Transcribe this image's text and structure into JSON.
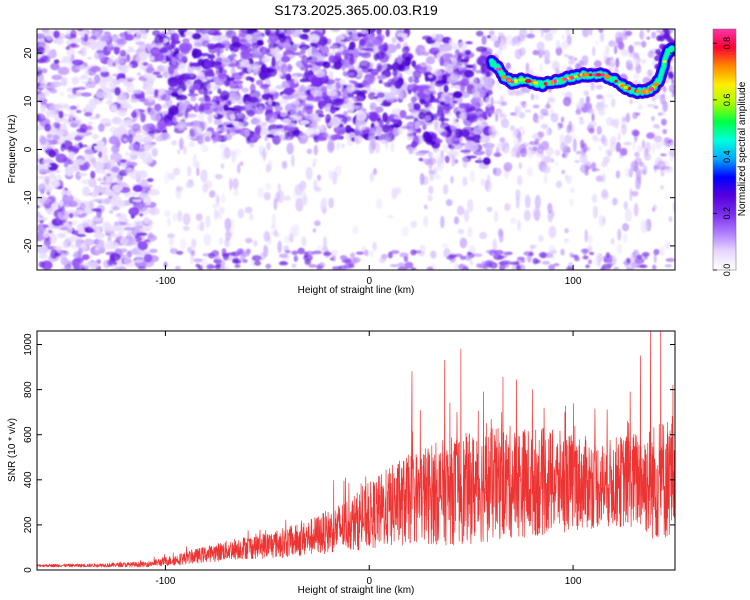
{
  "title": "S173.2025.365.00.03.R19",
  "colors": {
    "snr_line": "#ee3333",
    "spectrum_noise": "#7b2ff0",
    "colormap": [
      "#ffffff",
      "#e8d8ff",
      "#b07cff",
      "#7a2ff0",
      "#5500dd",
      "#0000ff",
      "#00aaff",
      "#00ffdd",
      "#00ff44",
      "#aaff00",
      "#ffee00",
      "#ff8800",
      "#ff0033",
      "#ff33aa"
    ]
  },
  "chart_data": [
    {
      "type": "heatmap",
      "title": "S173.2025.365.00.03.R19",
      "xlabel": "Height of straight line (km)",
      "ylabel": "Frequency (Hz)",
      "xlim": [
        -163,
        150
      ],
      "ylim": [
        -25,
        25
      ],
      "xticks": [
        -100,
        0,
        100
      ],
      "yticks": [
        -20,
        -10,
        0,
        10,
        20
      ],
      "grid": false,
      "colorbar": {
        "label": "Normalized spectral amplitude",
        "range": [
          0,
          0.85
        ],
        "ticks": [
          0.0,
          0.2,
          0.4,
          0.6,
          0.8
        ]
      },
      "tone_track": {
        "x": [
          60,
          63,
          66,
          70,
          75,
          80,
          85,
          90,
          95,
          100,
          105,
          110,
          115,
          120,
          125,
          128,
          132,
          136,
          140,
          143,
          146,
          149
        ],
        "y": [
          18,
          17,
          15,
          14,
          14.5,
          14,
          13.5,
          14,
          14.5,
          15,
          15.5,
          15.5,
          15.5,
          14.5,
          13,
          12.5,
          12,
          12,
          13,
          15,
          20,
          21
        ],
        "peak_amplitude": 0.85
      }
    },
    {
      "type": "line",
      "xlabel": "Height of straight line (km)",
      "ylabel": "SNR (10 * v/v)",
      "xlim": [
        -163,
        150
      ],
      "ylim": [
        0,
        1060
      ],
      "xticks": [
        -100,
        0,
        100
      ],
      "yticks": [
        0,
        200,
        400,
        600,
        800,
        1000
      ],
      "grid": false,
      "envelope": {
        "x": [
          -163,
          -140,
          -110,
          -95,
          -80,
          -65,
          -50,
          -35,
          -20,
          -5,
          10,
          25,
          40,
          55,
          70,
          85,
          100,
          115,
          130,
          140,
          150
        ],
        "mean": [
          20,
          20,
          25,
          45,
          70,
          95,
          110,
          130,
          170,
          220,
          280,
          330,
          350,
          370,
          390,
          390,
          390,
          380,
          400,
          390,
          420
        ],
        "spread": [
          5,
          6,
          10,
          20,
          30,
          40,
          50,
          60,
          80,
          110,
          150,
          180,
          200,
          210,
          210,
          200,
          180,
          160,
          180,
          220,
          240
        ]
      },
      "peaks": [
        {
          "x": 21,
          "y": 880
        },
        {
          "x": 37,
          "y": 930
        },
        {
          "x": 45,
          "y": 980
        },
        {
          "x": 56,
          "y": 790
        },
        {
          "x": 65,
          "y": 700
        },
        {
          "x": 80,
          "y": 800
        },
        {
          "x": 96,
          "y": 700
        },
        {
          "x": 128,
          "y": 790
        },
        {
          "x": 133,
          "y": 950
        },
        {
          "x": 138,
          "y": 1060
        },
        {
          "x": 143,
          "y": 1070
        },
        {
          "x": 149,
          "y": 820
        }
      ]
    }
  ]
}
